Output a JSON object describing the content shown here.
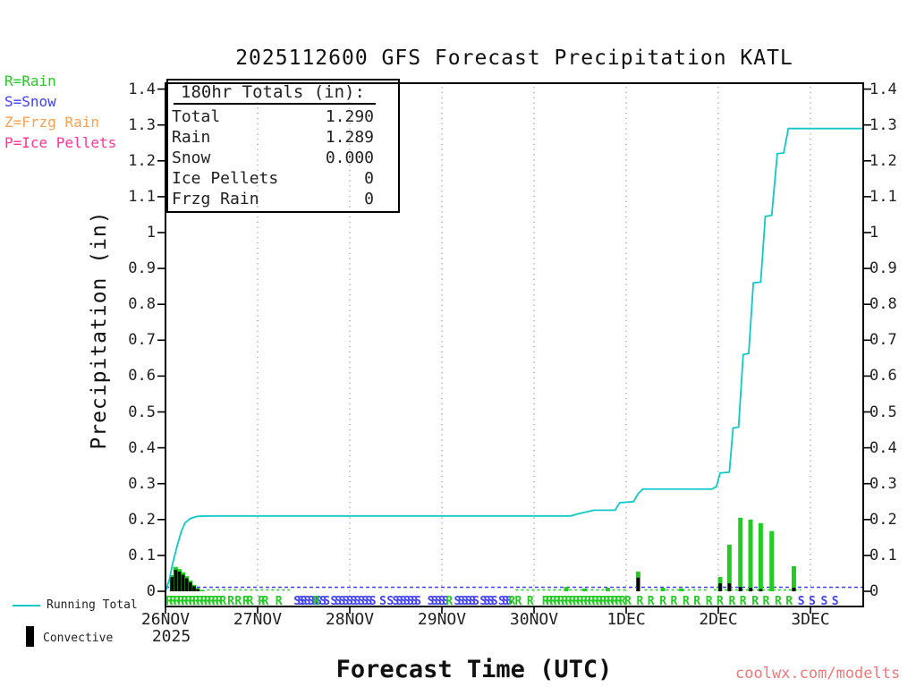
{
  "title": "2025112600 GFS Forecast Precipitation KATL",
  "watermark": "coolwx.com/modelts",
  "type_legend": [
    {
      "label": "R=Rain",
      "color": "#22cc22"
    },
    {
      "label": "S=Snow",
      "color": "#4040ff"
    },
    {
      "label": "Z=Frzg Rain",
      "color": "#ffa050"
    },
    {
      "label": "P=Ice Pellets",
      "color": "#ff3399"
    }
  ],
  "totals_box": {
    "header": "180hr Totals (in):",
    "rows": [
      {
        "label": "Total",
        "value": "1.290"
      },
      {
        "label": "Rain",
        "value": "1.289"
      },
      {
        "label": "Snow",
        "value": "0.000"
      },
      {
        "label": "Ice Pellets",
        "value": "0"
      },
      {
        "label": "Frzg Rain",
        "value": "0"
      }
    ]
  },
  "chart_data": {
    "type": "line+bar",
    "title": "2025112600 GFS Forecast Precipitation KATL",
    "xlabel": "Forecast Time (UTC)",
    "ylabel": "Precipitation (in)",
    "ylim": [
      0,
      1.4
    ],
    "x_range_days": [
      0,
      7.57
    ],
    "grid": "vertical-dotted-per-day",
    "y_ticks": [
      "0",
      "0.1",
      "0.2",
      "0.3",
      "0.4",
      "0.5",
      "0.6",
      "0.7",
      "0.8",
      "0.9",
      "1",
      "1.1",
      "1.2",
      "1.3",
      "1.4"
    ],
    "x_ticks": [
      {
        "label": "26NOV",
        "day": 0,
        "sublabel": "2025"
      },
      {
        "label": "27NOV",
        "day": 1
      },
      {
        "label": "28NOV",
        "day": 2
      },
      {
        "label": "29NOV",
        "day": 3
      },
      {
        "label": "30NOV",
        "day": 4
      },
      {
        "label": "1DEC",
        "day": 5
      },
      {
        "label": "2DEC",
        "day": 6
      },
      {
        "label": "3DEC",
        "day": 7
      }
    ],
    "series": [
      {
        "name": "Running Total",
        "type": "line",
        "color": "#10c8c8",
        "points": [
          [
            0,
            0
          ],
          [
            0.04,
            0.03
          ],
          [
            0.08,
            0.08
          ],
          [
            0.13,
            0.13
          ],
          [
            0.17,
            0.165
          ],
          [
            0.21,
            0.19
          ],
          [
            0.27,
            0.203
          ],
          [
            0.35,
            0.209
          ],
          [
            0.5,
            0.21
          ],
          [
            4.4,
            0.21
          ],
          [
            4.48,
            0.216
          ],
          [
            4.58,
            0.222
          ],
          [
            4.65,
            0.226
          ],
          [
            4.88,
            0.226
          ],
          [
            4.93,
            0.247
          ],
          [
            5.08,
            0.25
          ],
          [
            5.13,
            0.272
          ],
          [
            5.18,
            0.285
          ],
          [
            5.93,
            0.285
          ],
          [
            5.98,
            0.292
          ],
          [
            6.02,
            0.33
          ],
          [
            6.12,
            0.332
          ],
          [
            6.16,
            0.455
          ],
          [
            6.22,
            0.458
          ],
          [
            6.27,
            0.66
          ],
          [
            6.33,
            0.663
          ],
          [
            6.38,
            0.86
          ],
          [
            6.46,
            0.862
          ],
          [
            6.51,
            1.045
          ],
          [
            6.58,
            1.048
          ],
          [
            6.64,
            1.22
          ],
          [
            6.71,
            1.222
          ],
          [
            6.76,
            1.29
          ],
          [
            7.57,
            1.29
          ]
        ]
      },
      {
        "name": "Rain per interval",
        "type": "bar",
        "color": "#22cc22",
        "points": [
          [
            0.07,
            0.045
          ],
          [
            0.11,
            0.068
          ],
          [
            0.15,
            0.062
          ],
          [
            0.19,
            0.053
          ],
          [
            0.23,
            0.042
          ],
          [
            0.27,
            0.03
          ],
          [
            0.31,
            0.018
          ],
          [
            0.35,
            0.009
          ],
          [
            0.4,
            0.004
          ],
          [
            4.35,
            0.012
          ],
          [
            4.55,
            0.008
          ],
          [
            4.8,
            0.01
          ],
          [
            5.13,
            0.055
          ],
          [
            5.4,
            0.01
          ],
          [
            5.6,
            0.008
          ],
          [
            6.02,
            0.04
          ],
          [
            6.12,
            0.13
          ],
          [
            6.24,
            0.205
          ],
          [
            6.35,
            0.2
          ],
          [
            6.46,
            0.19
          ],
          [
            6.58,
            0.168
          ],
          [
            6.82,
            0.07
          ]
        ]
      },
      {
        "name": "Convective",
        "type": "bar",
        "color": "#000000",
        "points": [
          [
            0.07,
            0.04
          ],
          [
            0.11,
            0.06
          ],
          [
            0.15,
            0.055
          ],
          [
            0.19,
            0.046
          ],
          [
            0.23,
            0.036
          ],
          [
            0.27,
            0.025
          ],
          [
            0.31,
            0.014
          ],
          [
            0.35,
            0.006
          ],
          [
            5.13,
            0.038
          ],
          [
            6.02,
            0.022
          ],
          [
            6.12,
            0.022
          ],
          [
            6.24,
            0.012
          ],
          [
            6.35,
            0.01
          ],
          [
            6.46,
            0.006
          ],
          [
            6.82,
            0.01
          ]
        ]
      }
    ],
    "zero_line": {
      "snow_color": "#4040ff",
      "rain_color": "#22cc22",
      "rain_segments": [
        [
          0.45,
          1.35
        ],
        [
          3.8,
          5.0
        ],
        [
          5.2,
          5.9
        ],
        [
          5.95,
          6.9
        ]
      ]
    },
    "letters": {
      "colors": {
        "R": "#22cc22",
        "S": "#4040ff"
      },
      "items": [
        [
          0.042,
          "R"
        ],
        [
          0.083,
          "R"
        ],
        [
          0.125,
          "R"
        ],
        [
          0.167,
          "R"
        ],
        [
          0.208,
          "R"
        ],
        [
          0.25,
          "R"
        ],
        [
          0.292,
          "R"
        ],
        [
          0.333,
          "R"
        ],
        [
          0.375,
          "R"
        ],
        [
          0.417,
          "R"
        ],
        [
          0.458,
          "R"
        ],
        [
          0.5,
          "R"
        ],
        [
          0.542,
          "R"
        ],
        [
          0.583,
          "R"
        ],
        [
          0.625,
          "R"
        ],
        [
          0.71,
          "R"
        ],
        [
          0.79,
          "R"
        ],
        [
          0.875,
          "R"
        ],
        [
          0.917,
          "R"
        ],
        [
          1.042,
          "R"
        ],
        [
          1.083,
          "R"
        ],
        [
          1.23,
          "R"
        ],
        [
          1.43,
          "S"
        ],
        [
          1.47,
          "S"
        ],
        [
          1.5,
          "S"
        ],
        [
          1.54,
          "S"
        ],
        [
          1.58,
          "S"
        ],
        [
          1.62,
          "S"
        ],
        [
          1.66,
          "S"
        ],
        [
          1.64,
          "R"
        ],
        [
          1.71,
          "S"
        ],
        [
          1.75,
          "S"
        ],
        [
          1.83,
          "S"
        ],
        [
          1.875,
          "S"
        ],
        [
          1.917,
          "S"
        ],
        [
          1.958,
          "S"
        ],
        [
          2.0,
          "S"
        ],
        [
          2.042,
          "S"
        ],
        [
          2.083,
          "S"
        ],
        [
          2.125,
          "S"
        ],
        [
          2.167,
          "S"
        ],
        [
          2.208,
          "S"
        ],
        [
          2.25,
          "S"
        ],
        [
          2.36,
          "S"
        ],
        [
          2.44,
          "S"
        ],
        [
          2.5,
          "S"
        ],
        [
          2.54,
          "S"
        ],
        [
          2.58,
          "S"
        ],
        [
          2.62,
          "S"
        ],
        [
          2.66,
          "S"
        ],
        [
          2.7,
          "S"
        ],
        [
          2.74,
          "S"
        ],
        [
          2.88,
          "S"
        ],
        [
          2.92,
          "S"
        ],
        [
          2.96,
          "S"
        ],
        [
          3.0,
          "S"
        ],
        [
          3.04,
          "S"
        ],
        [
          3.08,
          "R"
        ],
        [
          3.17,
          "S"
        ],
        [
          3.21,
          "S"
        ],
        [
          3.25,
          "S"
        ],
        [
          3.29,
          "S"
        ],
        [
          3.33,
          "S"
        ],
        [
          3.37,
          "S"
        ],
        [
          3.45,
          "S"
        ],
        [
          3.49,
          "S"
        ],
        [
          3.53,
          "S"
        ],
        [
          3.57,
          "S"
        ],
        [
          3.65,
          "S"
        ],
        [
          3.69,
          "S"
        ],
        [
          3.73,
          "S"
        ],
        [
          3.76,
          "R"
        ],
        [
          3.83,
          "R"
        ],
        [
          3.96,
          "R"
        ],
        [
          4.125,
          "R"
        ],
        [
          4.167,
          "R"
        ],
        [
          4.208,
          "R"
        ],
        [
          4.25,
          "R"
        ],
        [
          4.292,
          "R"
        ],
        [
          4.333,
          "R"
        ],
        [
          4.375,
          "R"
        ],
        [
          4.417,
          "R"
        ],
        [
          4.458,
          "R"
        ],
        [
          4.5,
          "R"
        ],
        [
          4.542,
          "R"
        ],
        [
          4.583,
          "R"
        ],
        [
          4.625,
          "R"
        ],
        [
          4.667,
          "R"
        ],
        [
          4.708,
          "R"
        ],
        [
          4.75,
          "R"
        ],
        [
          4.79,
          "R"
        ],
        [
          4.83,
          "R"
        ],
        [
          4.875,
          "R"
        ],
        [
          4.92,
          "R"
        ],
        [
          4.96,
          "R"
        ],
        [
          5.02,
          "R"
        ],
        [
          5.15,
          "R"
        ],
        [
          5.27,
          "R"
        ],
        [
          5.4,
          "R"
        ],
        [
          5.52,
          "R"
        ],
        [
          5.65,
          "R"
        ],
        [
          5.77,
          "R"
        ],
        [
          5.9,
          "R"
        ],
        [
          6.02,
          "R"
        ],
        [
          6.15,
          "R"
        ],
        [
          6.27,
          "R"
        ],
        [
          6.4,
          "R"
        ],
        [
          6.52,
          "R"
        ],
        [
          6.65,
          "R"
        ],
        [
          6.77,
          "R"
        ],
        [
          6.9,
          "S"
        ],
        [
          7.02,
          "S"
        ],
        [
          7.15,
          "S"
        ],
        [
          7.27,
          "S"
        ]
      ]
    }
  }
}
